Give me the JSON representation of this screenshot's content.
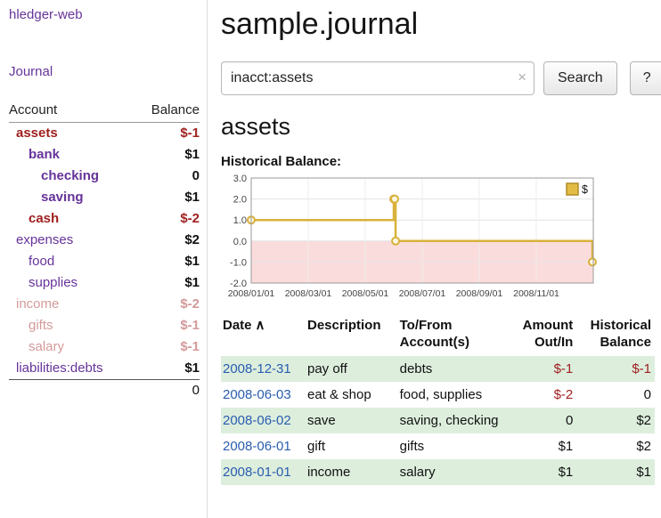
{
  "app": {
    "brand": "hledger-web"
  },
  "colors": {
    "link_purple": "#663399",
    "negative_red": "#a02020",
    "date_blue": "#2a5db0",
    "row_green": "#ddeedd",
    "chart_line": "#d9b13b",
    "chart_negative_bg": "#fbdcdc"
  },
  "sidebar": {
    "journal_label": "Journal",
    "accounts_header": {
      "account": "Account",
      "balance": "Balance"
    },
    "accounts": [
      {
        "name": "assets",
        "balance": "$-1",
        "indent": 1,
        "bold": true,
        "negative": true,
        "dimmed": false
      },
      {
        "name": "bank",
        "balance": "$1",
        "indent": 2,
        "bold": true,
        "negative": false,
        "dimmed": false
      },
      {
        "name": "checking",
        "balance": "0",
        "indent": 3,
        "bold": true,
        "negative": false,
        "dimmed": false
      },
      {
        "name": "saving",
        "balance": "$1",
        "indent": 3,
        "bold": true,
        "negative": false,
        "dimmed": false
      },
      {
        "name": "cash",
        "balance": "$-2",
        "indent": 2,
        "bold": true,
        "negative": true,
        "dimmed": false
      },
      {
        "name": "expenses",
        "balance": "$2",
        "indent": 1,
        "bold": false,
        "negative": false,
        "dimmed": false
      },
      {
        "name": "food",
        "balance": "$1",
        "indent": 2,
        "bold": false,
        "negative": false,
        "dimmed": false
      },
      {
        "name": "supplies",
        "balance": "$1",
        "indent": 2,
        "bold": false,
        "negative": false,
        "dimmed": false
      },
      {
        "name": "income",
        "balance": "$-2",
        "indent": 1,
        "bold": false,
        "negative": true,
        "dimmed": true
      },
      {
        "name": "gifts",
        "balance": "$-1",
        "indent": 2,
        "bold": false,
        "negative": true,
        "dimmed": true
      },
      {
        "name": "salary",
        "balance": "$-1",
        "indent": 2,
        "bold": false,
        "negative": true,
        "dimmed": true
      },
      {
        "name": "liabilities:debts",
        "balance": "$1",
        "indent": 1,
        "bold": false,
        "negative": false,
        "dimmed": false
      }
    ],
    "total": "0"
  },
  "main": {
    "title": "sample.journal",
    "search": {
      "value": "inacct:assets",
      "clear_icon": "×",
      "button_label": "Search",
      "help_label": "?"
    },
    "account_title": "assets",
    "chart_heading": "Historical Balance:"
  },
  "chart_data": {
    "type": "line",
    "title": "Historical Balance",
    "legend": [
      {
        "label": "$",
        "color": "#e3bc45"
      }
    ],
    "x_tick_labels": [
      "2008/01/01",
      "2008/03/01",
      "2008/05/01",
      "2008/07/01",
      "2008/09/01",
      "2008/11/01"
    ],
    "x_tick_months": [
      0,
      2,
      4,
      6,
      8,
      10
    ],
    "xlim_months": [
      0,
      12
    ],
    "y_ticks": [
      3.0,
      2.0,
      1.0,
      0.0,
      -1.0,
      -2.0
    ],
    "ylim": [
      -2,
      3
    ],
    "grid": true,
    "legend_position": "top-right",
    "negative_region_color": "#fbdcdc",
    "series": [
      {
        "name": "$",
        "color": "#d9b13b",
        "step": true,
        "points": [
          {
            "date": "2008-01-01",
            "value": 1
          },
          {
            "date": "2008-06-01",
            "value": 2
          },
          {
            "date": "2008-06-02",
            "value": 2
          },
          {
            "date": "2008-06-03",
            "value": 0
          },
          {
            "date": "2008-12-31",
            "value": -1
          }
        ]
      }
    ]
  },
  "register": {
    "headers": {
      "date": "Date",
      "sort_indicator": "∧",
      "description": "Description",
      "account_l1": "To/From",
      "account_l2": "Account(s)",
      "amount_l1": "Amount",
      "amount_l2": "Out/In",
      "balance_l1": "Historical",
      "balance_l2": "Balance"
    },
    "rows": [
      {
        "date": "2008-12-31",
        "description": "pay off",
        "account": "debts",
        "amount": "$-1",
        "balance": "$-1",
        "amount_negative": true,
        "balance_negative": true,
        "shaded": true
      },
      {
        "date": "2008-06-03",
        "description": "eat & shop",
        "account": "food, supplies",
        "amount": "$-2",
        "balance": "0",
        "amount_negative": true,
        "balance_negative": false,
        "shaded": false
      },
      {
        "date": "2008-06-02",
        "description": "save",
        "account": "saving, checking",
        "amount": "0",
        "balance": "$2",
        "amount_negative": false,
        "balance_negative": false,
        "shaded": true
      },
      {
        "date": "2008-06-01",
        "description": "gift",
        "account": "gifts",
        "amount": "$1",
        "balance": "$2",
        "amount_negative": false,
        "balance_negative": false,
        "shaded": false
      },
      {
        "date": "2008-01-01",
        "description": "income",
        "account": "salary",
        "amount": "$1",
        "balance": "$1",
        "amount_negative": false,
        "balance_negative": false,
        "shaded": true
      }
    ]
  }
}
